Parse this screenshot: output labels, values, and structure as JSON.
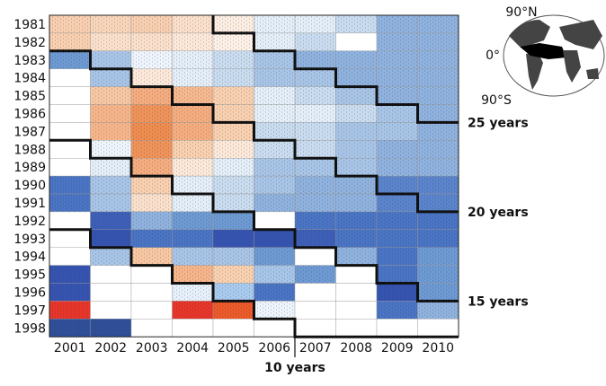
{
  "row_labels": [
    "1981",
    "1982",
    "1983",
    "1984",
    "1985",
    "1986",
    "1987",
    "1988",
    "1989",
    "1990",
    "1991",
    "1992",
    "1993",
    "1994",
    "1995",
    "1996",
    "1997",
    "1998"
  ],
  "col_labels": [
    "2001",
    "2002",
    "2003",
    "2004",
    "2005",
    "2006",
    "2007",
    "2008",
    "2009",
    "2010"
  ],
  "cells": [
    [
      "#f8cfb0",
      "#f9d6bb",
      "#f8cfb0",
      "#fbe0cc",
      "#fdeee2",
      "#e4eff9",
      "#e4eff9",
      "#c9dcf0",
      "#8fb2df",
      "#8fb2df"
    ],
    [
      "#f9d0b0",
      "#fbe0cc",
      "#fbe0cc",
      "#fde9da",
      "#fdf1e8",
      "#e4eff9",
      "#c9dcf0",
      "#ffffff",
      "#8fb2df",
      "#8fb2df"
    ],
    [
      "#6d9ad3",
      "#a8c5e8",
      "#eef5fc",
      "#e4eff9",
      "#c9dcf0",
      "#a8c5e8",
      "#8fb2df",
      "#8fb2df",
      "#8fb2df",
      "#8fb2df"
    ],
    [
      "#ffffff",
      "#a8c5e8",
      "#fde9da",
      "#e4eff9",
      "#c9dcf0",
      "#a8c5e8",
      "#a8c5e8",
      "#8fb2df",
      "#8fb2df",
      "#8fb2df"
    ],
    [
      "#ffffff",
      "#f8c7a3",
      "#f5ad80",
      "#f6b98f",
      "#f9d0b0",
      "#e4eff9",
      "#c9dcf0",
      "#a8c5e8",
      "#8fb2df",
      "#8fb2df"
    ],
    [
      "#ffffff",
      "#f6b58a",
      "#f0935a",
      "#f5ad80",
      "#f9d0b0",
      "#e4eff9",
      "#e4eff9",
      "#c9dcf0",
      "#a8c5e8",
      "#8fb2df"
    ],
    [
      "#ffffff",
      "#f6b58a",
      "#ef8c50",
      "#f5ad80",
      "#f9d0b0",
      "#c9dcf0",
      "#c9dcf0",
      "#a8c5e8",
      "#a8c5e8",
      "#8fb2df"
    ],
    [
      "#ffffff",
      "#eef5fc",
      "#f0935a",
      "#f9d0b0",
      "#fde9da",
      "#c9dcf0",
      "#c9dcf0",
      "#a8c5e8",
      "#8fb2df",
      "#8fb2df"
    ],
    [
      "#ffffff",
      "#e4eff9",
      "#f5ad80",
      "#fde9da",
      "#e4eff9",
      "#a8c5e8",
      "#a8c5e8",
      "#a8c5e8",
      "#8fb2df",
      "#8fb2df"
    ],
    [
      "#4a74c4",
      "#a8c5e8",
      "#f9d0b0",
      "#e4eff9",
      "#c9dcf0",
      "#a8c5e8",
      "#8fb2df",
      "#8fb2df",
      "#5a84cc",
      "#5a84cc"
    ],
    [
      "#4a74c4",
      "#a8c5e8",
      "#fbe0cc",
      "#e4eff9",
      "#c9dcf0",
      "#8fb2df",
      "#8fb2df",
      "#8fb2df",
      "#5a84cc",
      "#5a84cc"
    ],
    [
      "#ffffff",
      "#3d5fb8",
      "#8fb2df",
      "#6d9ad3",
      "#6d9ad3",
      "#ffffff",
      "#4a74c4",
      "#4a74c4",
      "#4a74c4",
      "#4a74c4"
    ],
    [
      "#ffffff",
      "#3553b0",
      "#4a74c4",
      "#4a74c4",
      "#3553b0",
      "#3553b0",
      "#3d5fb8",
      "#4a74c4",
      "#4a74c4",
      "#4a74c4"
    ],
    [
      "#ffffff",
      "#a8c5e8",
      "#f8c7a3",
      "#a8c5e8",
      "#a8c5e8",
      "#6d9ad3",
      "#ffffff",
      "#8fb2df",
      "#4a74c4",
      "#6d9ad3"
    ],
    [
      "#3553b0",
      "#ffffff",
      "#ffffff",
      "#f6b58a",
      "#f9d0b0",
      "#a7c6ea",
      "#6d9ad3",
      "#ffffff",
      "#4a74c4",
      "#6d9ad3"
    ],
    [
      "#3553b0",
      "#ffffff",
      "#ffffff",
      "#e6f1fb",
      "#a9cbef",
      "#4a74c4",
      "#ffffff",
      "#ffffff",
      "#3553b0",
      "#6d9ad3"
    ],
    [
      "#e8352a",
      "#ffffff",
      "#ffffff",
      "#e8352a",
      "#ec5a2a",
      "#eef5fc",
      "#ffffff",
      "#ffffff",
      "#4a74c4",
      "#8fb2df"
    ],
    [
      "#2f4f9a",
      "#2f4f9a",
      "#ffffff",
      "#ffffff",
      "#ffffff",
      "#ffffff",
      "#ffffff",
      "#ffffff",
      "#ffffff",
      "#ffffff"
    ]
  ],
  "map_labels": [
    "90°N",
    "0°",
    "90°S"
  ],
  "lag_labels": [
    "25 years",
    "20 years",
    "15 years",
    "10 years"
  ]
}
